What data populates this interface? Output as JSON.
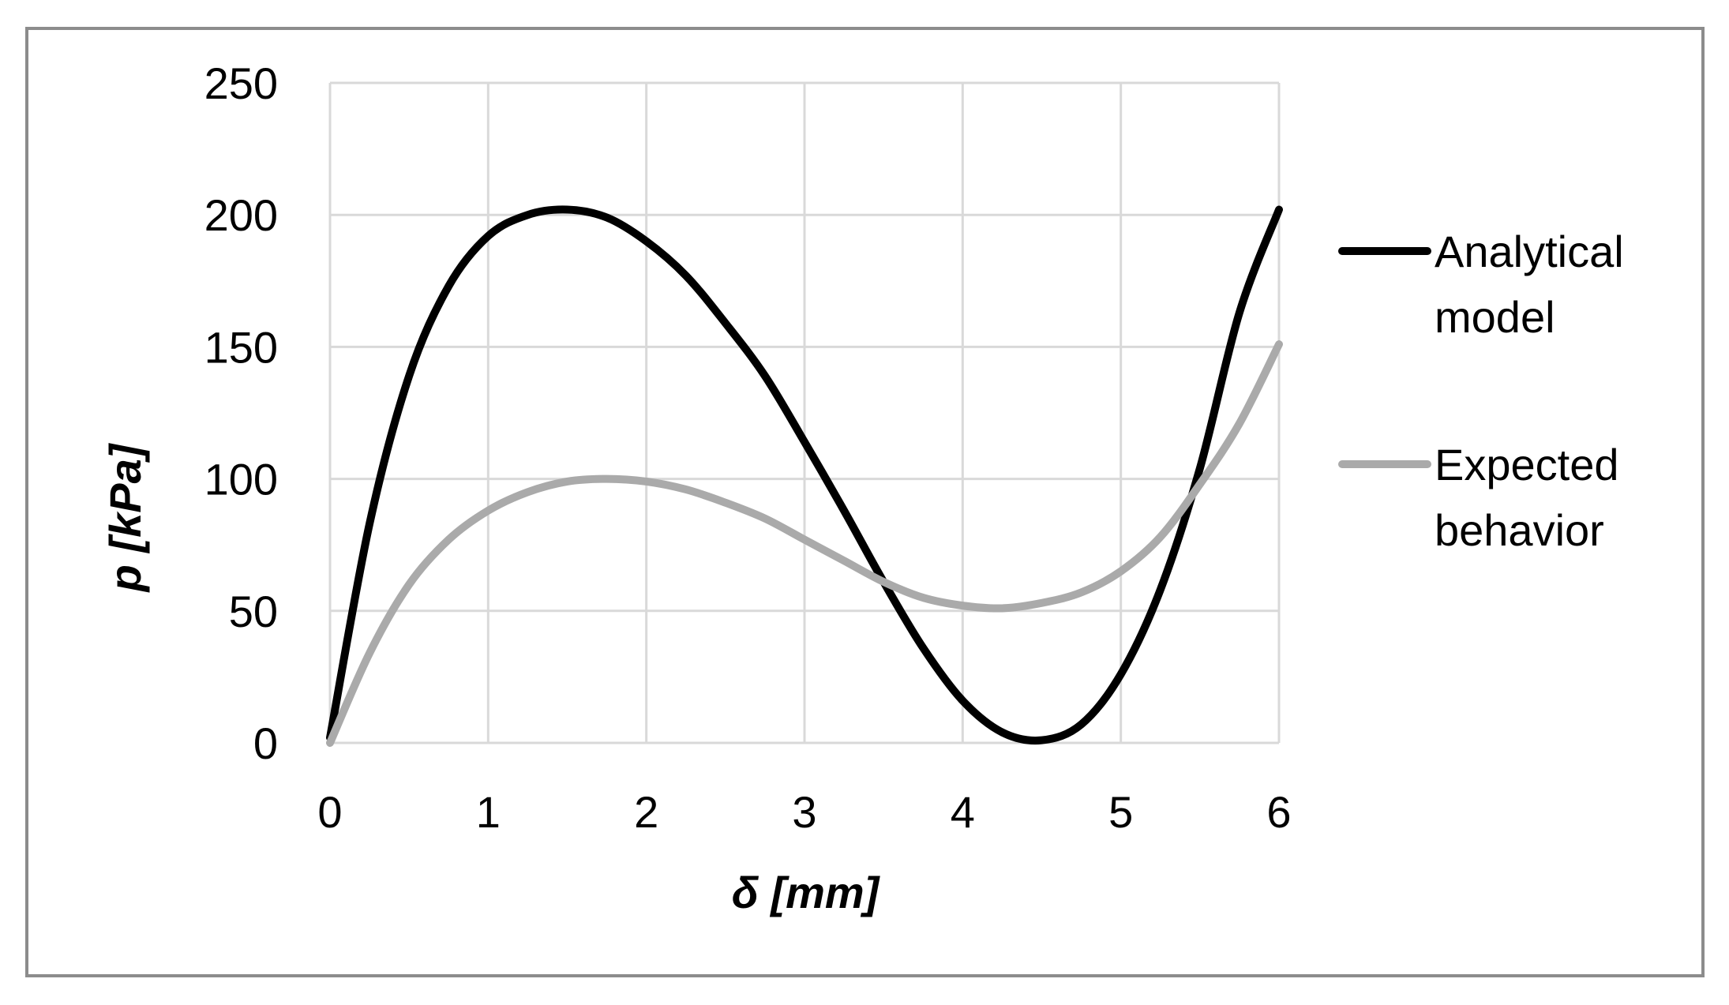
{
  "chart_data": {
    "type": "line",
    "title": "",
    "xlabel": "δ [mm]",
    "ylabel": "p [kPa]",
    "xlim": [
      0,
      6
    ],
    "ylim": [
      0,
      250
    ],
    "xticks": [
      "0",
      "1",
      "2",
      "3",
      "4",
      "5",
      "6"
    ],
    "yticks": [
      "0",
      "50",
      "100",
      "150",
      "200",
      "250"
    ],
    "grid": true,
    "legend_position": "right",
    "series": [
      {
        "name": "Analytical model",
        "color": "#000000",
        "x": [
          0,
          0.25,
          0.5,
          0.75,
          1.0,
          1.25,
          1.5,
          1.75,
          2.0,
          2.25,
          2.5,
          2.75,
          3.0,
          3.25,
          3.5,
          3.75,
          4.0,
          4.25,
          4.5,
          4.75,
          5.0,
          5.25,
          5.5,
          5.75,
          6.0
        ],
        "y": [
          2,
          83,
          139,
          173,
          192,
          200,
          202,
          199,
          190,
          177,
          159,
          139,
          114,
          88,
          61,
          36,
          16,
          4,
          1,
          7,
          26,
          58,
          104,
          163,
          202
        ]
      },
      {
        "name": "Expected behavior",
        "color": "#aaaaaa",
        "x": [
          0,
          0.25,
          0.5,
          0.75,
          1.0,
          1.25,
          1.5,
          1.75,
          2.0,
          2.25,
          2.5,
          2.75,
          3.0,
          3.25,
          3.5,
          3.75,
          4.0,
          4.25,
          4.5,
          4.75,
          5.0,
          5.25,
          5.5,
          5.75,
          6.0
        ],
        "y": [
          0,
          34,
          60,
          77,
          88,
          95,
          99,
          100,
          99,
          96,
          91,
          85,
          77,
          69,
          61,
          55,
          52,
          51,
          53,
          57,
          65,
          78,
          98,
          121,
          151
        ]
      }
    ]
  }
}
